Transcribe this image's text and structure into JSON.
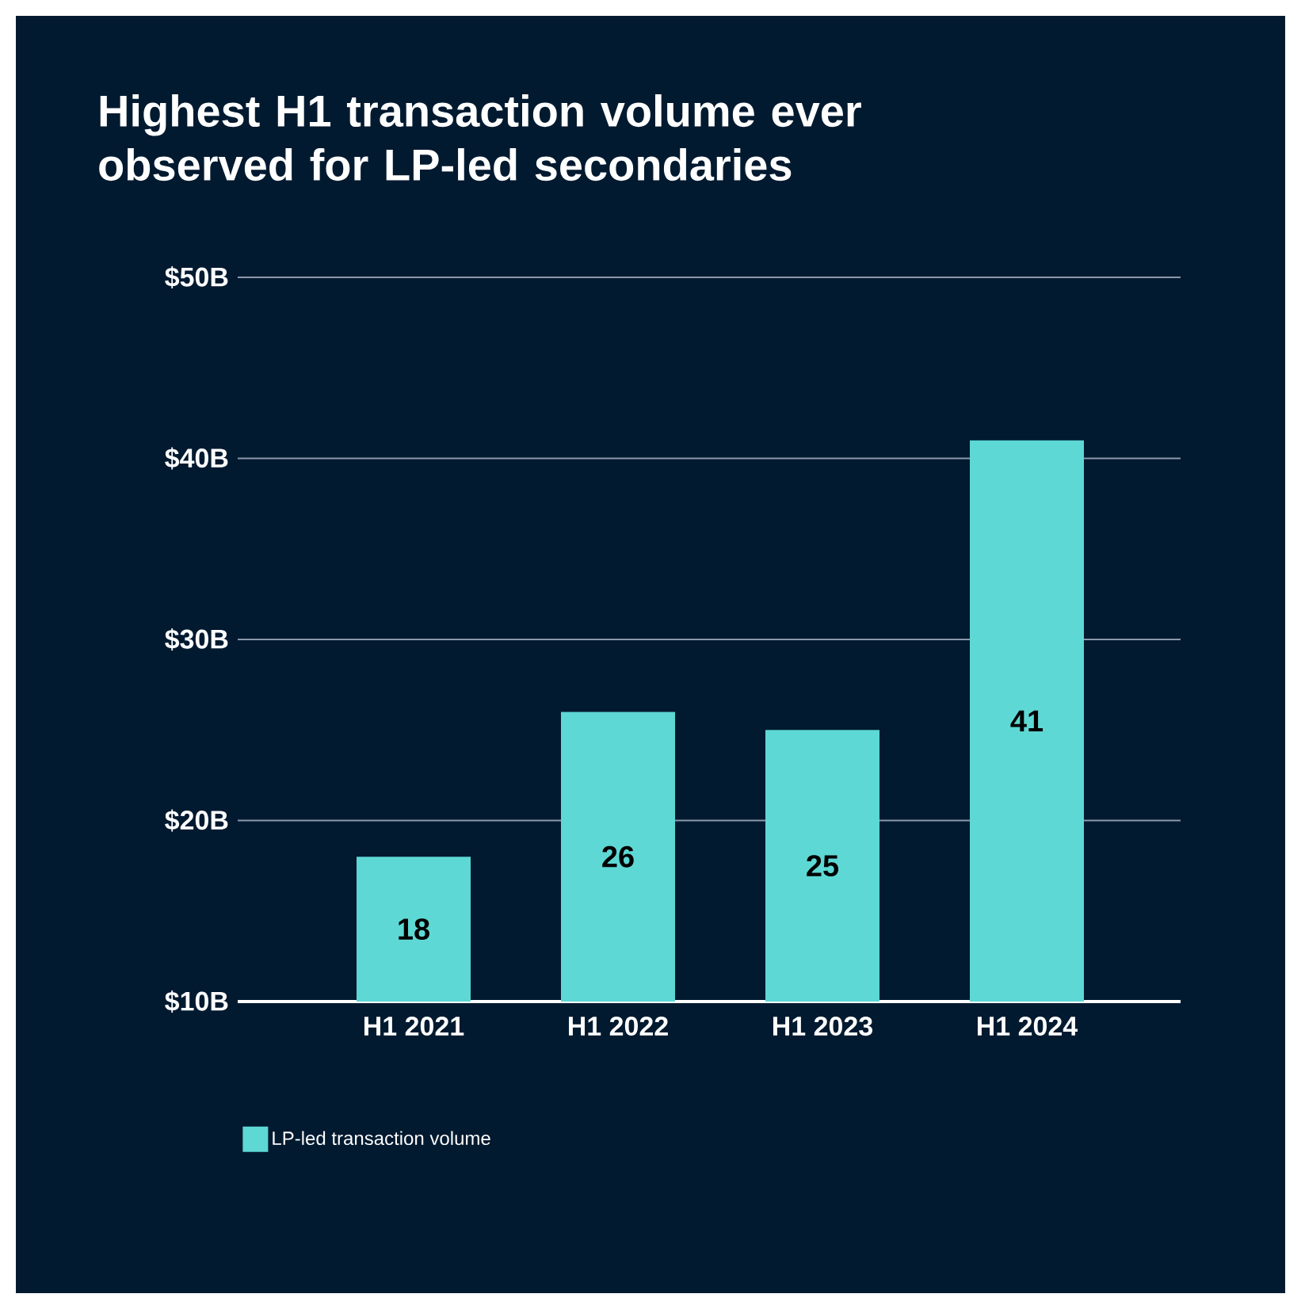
{
  "chart_data": {
    "type": "bar",
    "title": "Highest H1 transaction volume ever observed for LP-led secondaries",
    "categories": [
      "H1 2021",
      "H1 2022",
      "H1 2023",
      "H1 2024"
    ],
    "series": [
      {
        "name": "LP-led transaction volume",
        "color": "#5ed8d4",
        "values": [
          18,
          26,
          25,
          41
        ]
      }
    ],
    "ylim": [
      10,
      50
    ],
    "yticks": [
      {
        "value": 10,
        "label": "$10B"
      },
      {
        "value": 20,
        "label": "$20B"
      },
      {
        "value": 30,
        "label": "$30B"
      },
      {
        "value": 40,
        "label": "$40B"
      },
      {
        "value": 50,
        "label": "$50B"
      }
    ],
    "grid": "y",
    "legend": "bottom left",
    "data_labels": true
  }
}
